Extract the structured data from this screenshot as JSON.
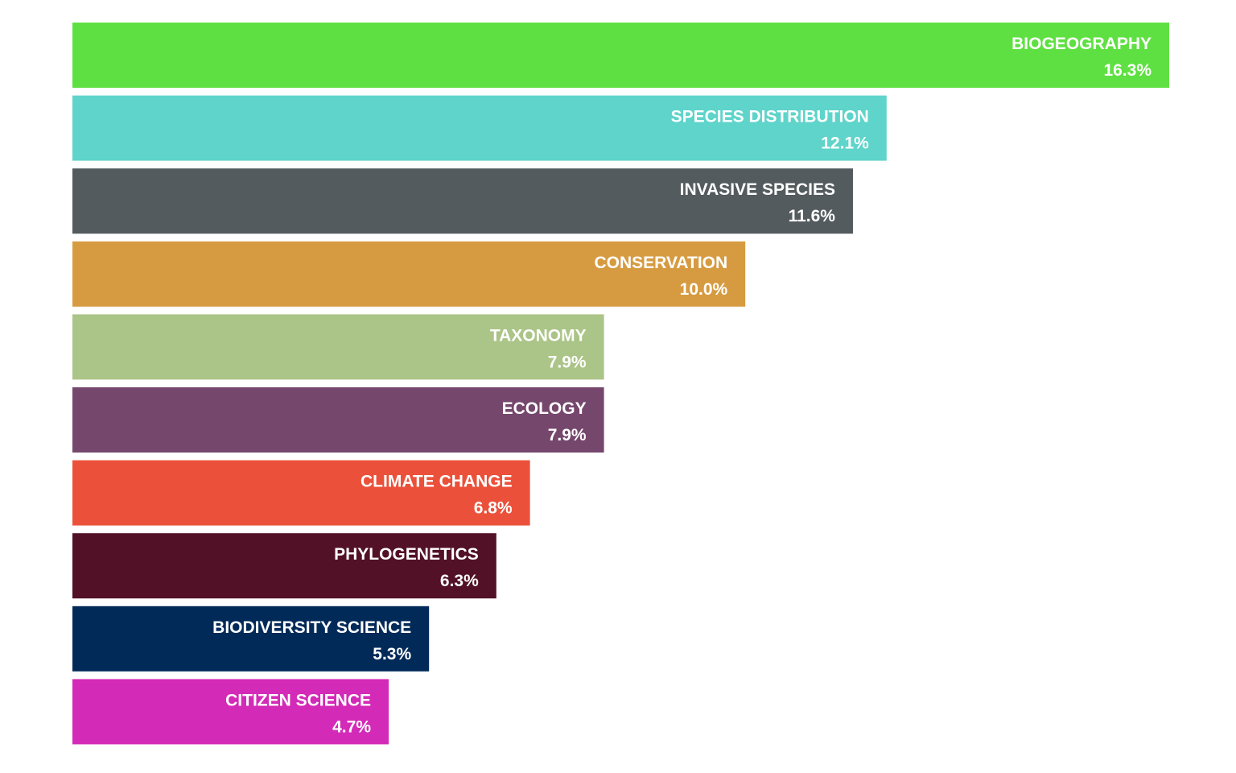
{
  "chart_data": {
    "type": "bar",
    "orientation": "horizontal",
    "title": "",
    "xlabel": "",
    "ylabel": "",
    "grid": false,
    "legend": "none",
    "value_format": "percent",
    "xlim": [
      0,
      16.3
    ],
    "categories": [
      "BIOGEOGRAPHY",
      "SPECIES DISTRIBUTION",
      "INVASIVE SPECIES",
      "CONSERVATION",
      "TAXONOMY",
      "ECOLOGY",
      "CLIMATE CHANGE",
      "PHYLOGENETICS",
      "BIODIVERSITY SCIENCE",
      "CITIZEN SCIENCE"
    ],
    "values": [
      16.3,
      12.1,
      11.6,
      10.0,
      7.9,
      7.9,
      6.8,
      6.3,
      5.3,
      4.7
    ],
    "value_labels": [
      "16.3%",
      "12.1%",
      "11.6%",
      "10.0%",
      "7.9%",
      "7.9%",
      "6.8%",
      "6.3%",
      "5.3%",
      "4.7%"
    ],
    "colors": [
      "#5fe042",
      "#5ed4ca",
      "#545b5e",
      "#d69b41",
      "#abc487",
      "#76476c",
      "#eb513a",
      "#521126",
      "#022a59",
      "#d42ab8"
    ],
    "label_color": "#ffffff"
  }
}
